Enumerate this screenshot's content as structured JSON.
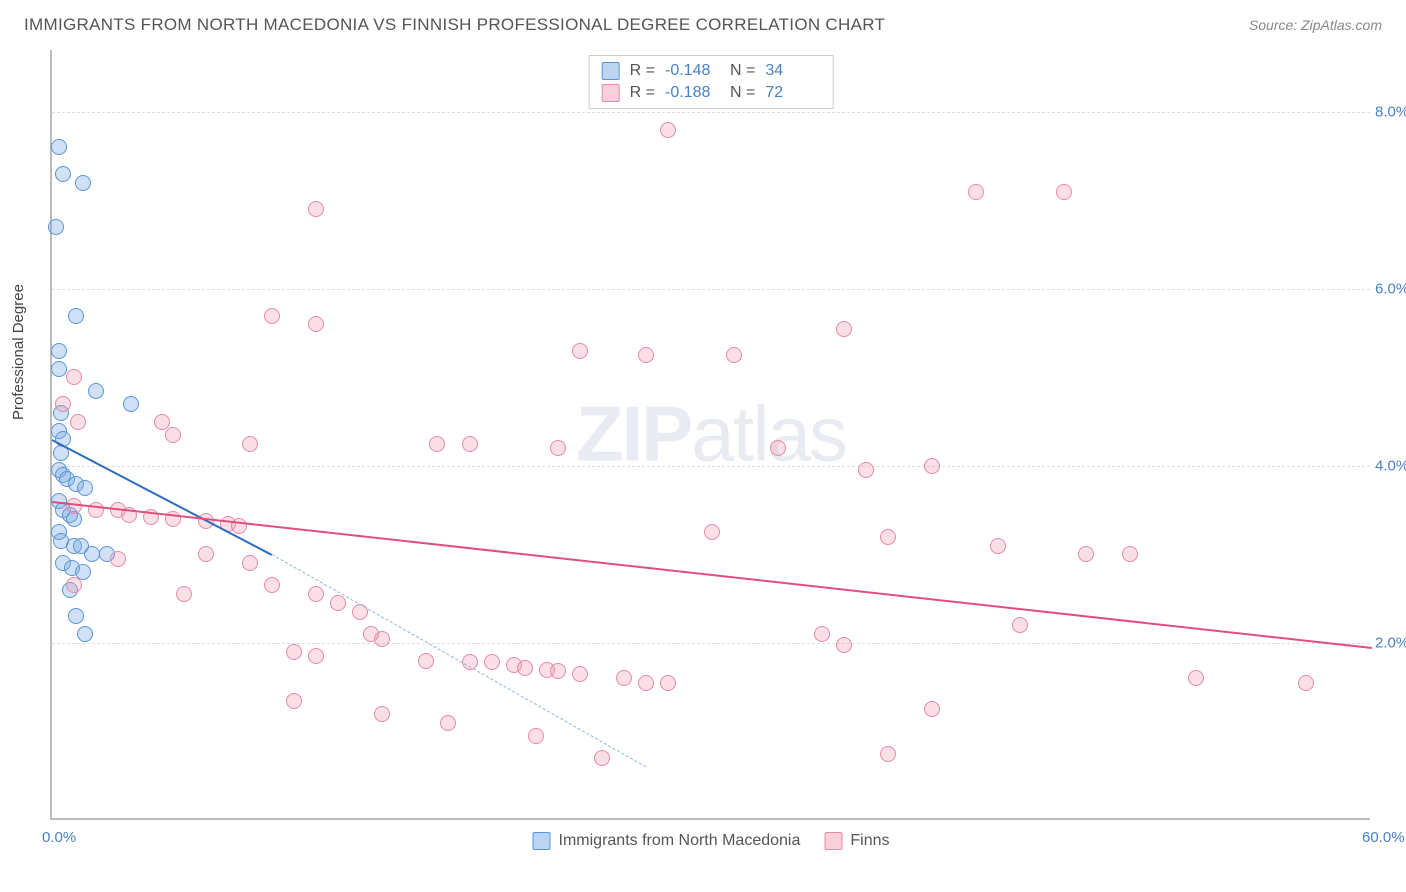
{
  "header": {
    "title": "IMMIGRANTS FROM NORTH MACEDONIA VS FINNISH PROFESSIONAL DEGREE CORRELATION CHART",
    "source": "Source: ZipAtlas.com"
  },
  "watermark": {
    "bold": "ZIP",
    "rest": "atlas"
  },
  "chart": {
    "type": "scatter",
    "ylabel": "Professional Degree",
    "xlim": [
      0,
      60
    ],
    "ylim": [
      0,
      8.7
    ],
    "xticks": [
      {
        "v": 0,
        "label": "0.0%"
      },
      {
        "v": 60,
        "label": "60.0%"
      }
    ],
    "yticks": [
      {
        "v": 2,
        "label": "2.0%"
      },
      {
        "v": 4,
        "label": "4.0%"
      },
      {
        "v": 6,
        "label": "6.0%"
      },
      {
        "v": 8,
        "label": "8.0%"
      }
    ],
    "grid_color": "#dddddd",
    "background_color": "#ffffff",
    "axis_color": "#bbbbbb",
    "series": [
      {
        "name": "Immigrants from North Macedonia",
        "color_fill": "rgba(120,170,225,0.35)",
        "color_stroke": "#5a95d6",
        "line_color": "#2d6cc0",
        "R": "-0.148",
        "N": "34",
        "trend": {
          "x1": 0,
          "y1": 4.3,
          "x2": 10,
          "y2": 3.0,
          "x2_dash": 27,
          "y2_dash": 0.6
        },
        "points": [
          [
            0.3,
            7.6
          ],
          [
            0.5,
            7.3
          ],
          [
            1.4,
            7.2
          ],
          [
            0.2,
            6.7
          ],
          [
            1.1,
            5.7
          ],
          [
            0.3,
            5.3
          ],
          [
            0.3,
            5.1
          ],
          [
            2.0,
            4.85
          ],
          [
            3.6,
            4.7
          ],
          [
            0.4,
            4.6
          ],
          [
            0.3,
            4.4
          ],
          [
            0.5,
            4.3
          ],
          [
            0.4,
            4.15
          ],
          [
            0.3,
            3.95
          ],
          [
            0.5,
            3.9
          ],
          [
            0.7,
            3.85
          ],
          [
            1.1,
            3.8
          ],
          [
            1.5,
            3.75
          ],
          [
            0.3,
            3.6
          ],
          [
            0.5,
            3.5
          ],
          [
            0.8,
            3.45
          ],
          [
            1.0,
            3.4
          ],
          [
            0.3,
            3.25
          ],
          [
            0.4,
            3.15
          ],
          [
            1.0,
            3.1
          ],
          [
            1.3,
            3.1
          ],
          [
            1.8,
            3.0
          ],
          [
            2.5,
            3.0
          ],
          [
            0.5,
            2.9
          ],
          [
            0.9,
            2.85
          ],
          [
            1.4,
            2.8
          ],
          [
            0.8,
            2.6
          ],
          [
            1.1,
            2.3
          ],
          [
            1.5,
            2.1
          ]
        ]
      },
      {
        "name": "Finns",
        "color_fill": "rgba(240,150,175,0.3)",
        "color_stroke": "#e68aa5",
        "line_color": "#e04f7c",
        "R": "-0.188",
        "N": "72",
        "trend": {
          "x1": 0,
          "y1": 3.6,
          "x2": 60,
          "y2": 1.95
        },
        "points": [
          [
            28,
            7.8
          ],
          [
            42,
            7.1
          ],
          [
            46,
            7.1
          ],
          [
            12,
            6.9
          ],
          [
            10,
            5.7
          ],
          [
            12,
            5.6
          ],
          [
            24,
            5.3
          ],
          [
            27,
            5.25
          ],
          [
            31,
            5.25
          ],
          [
            36,
            5.55
          ],
          [
            1,
            5.0
          ],
          [
            0.5,
            4.7
          ],
          [
            1.2,
            4.5
          ],
          [
            5,
            4.5
          ],
          [
            5.5,
            4.35
          ],
          [
            9,
            4.25
          ],
          [
            17.5,
            4.25
          ],
          [
            19,
            4.25
          ],
          [
            23,
            4.2
          ],
          [
            33,
            4.2
          ],
          [
            37,
            3.95
          ],
          [
            40,
            4.0
          ],
          [
            1,
            3.55
          ],
          [
            2,
            3.5
          ],
          [
            3,
            3.5
          ],
          [
            3.5,
            3.45
          ],
          [
            4.5,
            3.42
          ],
          [
            5.5,
            3.4
          ],
          [
            7,
            3.38
          ],
          [
            8,
            3.35
          ],
          [
            8.5,
            3.32
          ],
          [
            30,
            3.25
          ],
          [
            38,
            3.2
          ],
          [
            43,
            3.1
          ],
          [
            49,
            3.0
          ],
          [
            7,
            3.0
          ],
          [
            3,
            2.95
          ],
          [
            9,
            2.9
          ],
          [
            1,
            2.65
          ],
          [
            6,
            2.55
          ],
          [
            10,
            2.65
          ],
          [
            12,
            2.55
          ],
          [
            13,
            2.45
          ],
          [
            14,
            2.35
          ],
          [
            14.5,
            2.1
          ],
          [
            15,
            2.05
          ],
          [
            11,
            1.9
          ],
          [
            12,
            1.85
          ],
          [
            17,
            1.8
          ],
          [
            19,
            1.78
          ],
          [
            20,
            1.78
          ],
          [
            21,
            1.75
          ],
          [
            21.5,
            1.72
          ],
          [
            22.5,
            1.7
          ],
          [
            23,
            1.68
          ],
          [
            24,
            1.65
          ],
          [
            26,
            1.6
          ],
          [
            27,
            1.55
          ],
          [
            28,
            1.55
          ],
          [
            35,
            2.1
          ],
          [
            36,
            1.98
          ],
          [
            38,
            0.75
          ],
          [
            40,
            1.25
          ],
          [
            44,
            2.2
          ],
          [
            47,
            3.0
          ],
          [
            52,
            1.6
          ],
          [
            57,
            1.55
          ],
          [
            15,
            1.2
          ],
          [
            18,
            1.1
          ],
          [
            22,
            0.95
          ],
          [
            25,
            0.7
          ],
          [
            11,
            1.35
          ]
        ]
      }
    ],
    "legend_bottom": [
      {
        "swatch": "blue",
        "label": "Immigrants from North Macedonia"
      },
      {
        "swatch": "pink",
        "label": "Finns"
      }
    ]
  }
}
